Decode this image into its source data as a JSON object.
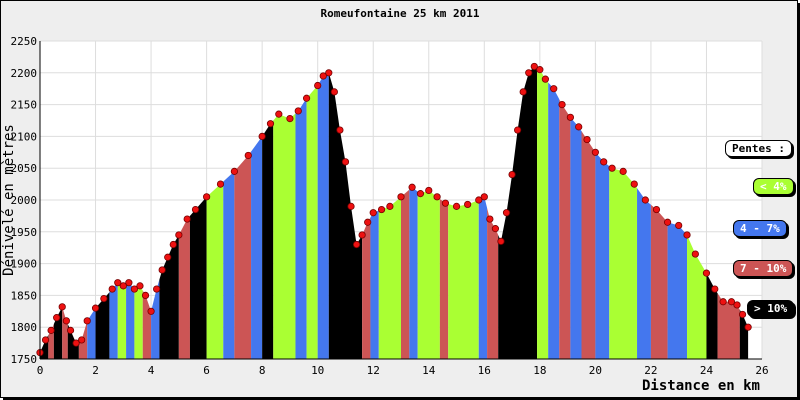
{
  "chart_data": {
    "type": "area",
    "title": "Romeufontaine 25 km 2011",
    "xlabel": "Distance en km",
    "ylabel": "Dénivelé en mètres",
    "xlim": [
      0,
      26
    ],
    "ylim": [
      1750,
      2250
    ],
    "x_ticks": [
      0,
      2,
      4,
      6,
      8,
      10,
      12,
      14,
      16,
      18,
      20,
      22,
      24,
      26
    ],
    "y_ticks": [
      1750,
      1800,
      1850,
      1900,
      1950,
      2000,
      2050,
      2100,
      2150,
      2200,
      2250
    ],
    "grid": true,
    "legend": {
      "title": "Pentes :",
      "items": [
        {
          "label": "< 4%",
          "color": "#aaff33"
        },
        {
          "label": "4 - 7%",
          "color": "#4477ee"
        },
        {
          "label": "7 - 10%",
          "color": "#cc5555"
        },
        {
          "label": "> 10%",
          "color": "#000000"
        }
      ]
    },
    "profile": {
      "x": [
        0.0,
        0.2,
        0.4,
        0.6,
        0.8,
        0.95,
        1.1,
        1.3,
        1.5,
        1.7,
        2.0,
        2.3,
        2.6,
        2.8,
        3.0,
        3.2,
        3.4,
        3.6,
        3.8,
        4.0,
        4.2,
        4.4,
        4.6,
        4.8,
        5.0,
        5.3,
        5.6,
        6.0,
        6.5,
        7.0,
        7.5,
        8.0,
        8.3,
        8.6,
        9.0,
        9.3,
        9.6,
        10.0,
        10.2,
        10.4,
        10.6,
        10.8,
        11.0,
        11.2,
        11.4,
        11.6,
        11.8,
        12.0,
        12.3,
        12.6,
        13.0,
        13.4,
        13.7,
        14.0,
        14.3,
        14.6,
        15.0,
        15.4,
        15.8,
        16.0,
        16.2,
        16.4,
        16.6,
        16.8,
        17.0,
        17.2,
        17.4,
        17.6,
        17.8,
        18.0,
        18.2,
        18.5,
        18.8,
        19.1,
        19.4,
        19.7,
        20.0,
        20.3,
        20.6,
        21.0,
        21.4,
        21.8,
        22.2,
        22.6,
        23.0,
        23.3,
        23.6,
        24.0,
        24.3,
        24.6,
        24.9,
        25.1,
        25.3,
        25.5
      ],
      "y": [
        1760,
        1780,
        1795,
        1815,
        1832,
        1810,
        1795,
        1775,
        1780,
        1810,
        1830,
        1845,
        1860,
        1870,
        1865,
        1870,
        1860,
        1865,
        1850,
        1825,
        1860,
        1890,
        1910,
        1930,
        1945,
        1970,
        1985,
        2005,
        2025,
        2045,
        2070,
        2100,
        2120,
        2135,
        2128,
        2140,
        2160,
        2180,
        2195,
        2200,
        2170,
        2110,
        2060,
        1990,
        1930,
        1945,
        1965,
        1980,
        1985,
        1990,
        2005,
        2020,
        2010,
        2015,
        2005,
        1995,
        1990,
        1993,
        2000,
        2005,
        1970,
        1955,
        1935,
        1980,
        2040,
        2110,
        2170,
        2200,
        2210,
        2205,
        2190,
        2175,
        2150,
        2130,
        2115,
        2095,
        2075,
        2060,
        2050,
        2045,
        2025,
        2000,
        1985,
        1965,
        1960,
        1945,
        1915,
        1885,
        1860,
        1840,
        1840,
        1835,
        1820,
        1800
      ]
    },
    "segments": [
      {
        "x0": 0.0,
        "x1": 0.3,
        "slope": "> 10%"
      },
      {
        "x0": 0.3,
        "x1": 0.5,
        "slope": "7 - 10%"
      },
      {
        "x0": 0.5,
        "x1": 0.8,
        "slope": "> 10%"
      },
      {
        "x0": 0.8,
        "x1": 1.0,
        "slope": "7 - 10%"
      },
      {
        "x0": 1.0,
        "x1": 1.4,
        "slope": "> 10%"
      },
      {
        "x0": 1.4,
        "x1": 1.7,
        "slope": "7 - 10%"
      },
      {
        "x0": 1.7,
        "x1": 2.0,
        "slope": "4 - 7%"
      },
      {
        "x0": 2.0,
        "x1": 2.5,
        "slope": "> 10%"
      },
      {
        "x0": 2.5,
        "x1": 2.8,
        "slope": "4 - 7%"
      },
      {
        "x0": 2.8,
        "x1": 3.1,
        "slope": "< 4%"
      },
      {
        "x0": 3.1,
        "x1": 3.4,
        "slope": "4 - 7%"
      },
      {
        "x0": 3.4,
        "x1": 3.7,
        "slope": "< 4%"
      },
      {
        "x0": 3.7,
        "x1": 4.0,
        "slope": "7 - 10%"
      },
      {
        "x0": 4.0,
        "x1": 4.3,
        "slope": "4 - 7%"
      },
      {
        "x0": 4.3,
        "x1": 5.0,
        "slope": "> 10%"
      },
      {
        "x0": 5.0,
        "x1": 5.4,
        "slope": "7 - 10%"
      },
      {
        "x0": 5.4,
        "x1": 6.0,
        "slope": "> 10%"
      },
      {
        "x0": 6.0,
        "x1": 6.6,
        "slope": "< 4%"
      },
      {
        "x0": 6.6,
        "x1": 7.0,
        "slope": "4 - 7%"
      },
      {
        "x0": 7.0,
        "x1": 7.6,
        "slope": "7 - 10%"
      },
      {
        "x0": 7.6,
        "x1": 8.0,
        "slope": "4 - 7%"
      },
      {
        "x0": 8.0,
        "x1": 8.4,
        "slope": "> 10%"
      },
      {
        "x0": 8.4,
        "x1": 9.2,
        "slope": "< 4%"
      },
      {
        "x0": 9.2,
        "x1": 9.6,
        "slope": "4 - 7%"
      },
      {
        "x0": 9.6,
        "x1": 10.0,
        "slope": "< 4%"
      },
      {
        "x0": 10.0,
        "x1": 10.4,
        "slope": "4 - 7%"
      },
      {
        "x0": 10.4,
        "x1": 11.6,
        "slope": "> 10%"
      },
      {
        "x0": 11.6,
        "x1": 11.9,
        "slope": "7 - 10%"
      },
      {
        "x0": 11.9,
        "x1": 12.2,
        "slope": "4 - 7%"
      },
      {
        "x0": 12.2,
        "x1": 13.0,
        "slope": "< 4%"
      },
      {
        "x0": 13.0,
        "x1": 13.3,
        "slope": "7 - 10%"
      },
      {
        "x0": 13.3,
        "x1": 13.6,
        "slope": "4 - 7%"
      },
      {
        "x0": 13.6,
        "x1": 14.4,
        "slope": "< 4%"
      },
      {
        "x0": 14.4,
        "x1": 14.7,
        "slope": "7 - 10%"
      },
      {
        "x0": 14.7,
        "x1": 15.8,
        "slope": "< 4%"
      },
      {
        "x0": 15.8,
        "x1": 16.1,
        "slope": "4 - 7%"
      },
      {
        "x0": 16.1,
        "x1": 16.5,
        "slope": "7 - 10%"
      },
      {
        "x0": 16.5,
        "x1": 17.9,
        "slope": "> 10%"
      },
      {
        "x0": 17.9,
        "x1": 18.3,
        "slope": "< 4%"
      },
      {
        "x0": 18.3,
        "x1": 18.7,
        "slope": "4 - 7%"
      },
      {
        "x0": 18.7,
        "x1": 19.1,
        "slope": "7 - 10%"
      },
      {
        "x0": 19.1,
        "x1": 19.5,
        "slope": "4 - 7%"
      },
      {
        "x0": 19.5,
        "x1": 20.0,
        "slope": "7 - 10%"
      },
      {
        "x0": 20.0,
        "x1": 20.5,
        "slope": "4 - 7%"
      },
      {
        "x0": 20.5,
        "x1": 21.5,
        "slope": "< 4%"
      },
      {
        "x0": 21.5,
        "x1": 22.0,
        "slope": "4 - 7%"
      },
      {
        "x0": 22.0,
        "x1": 22.6,
        "slope": "7 - 10%"
      },
      {
        "x0": 22.6,
        "x1": 23.3,
        "slope": "4 - 7%"
      },
      {
        "x0": 23.3,
        "x1": 24.0,
        "slope": "< 4%"
      },
      {
        "x0": 24.0,
        "x1": 24.4,
        "slope": "> 10%"
      },
      {
        "x0": 24.4,
        "x1": 25.2,
        "slope": "7 - 10%"
      },
      {
        "x0": 25.2,
        "x1": 25.5,
        "slope": "> 10%"
      }
    ]
  }
}
